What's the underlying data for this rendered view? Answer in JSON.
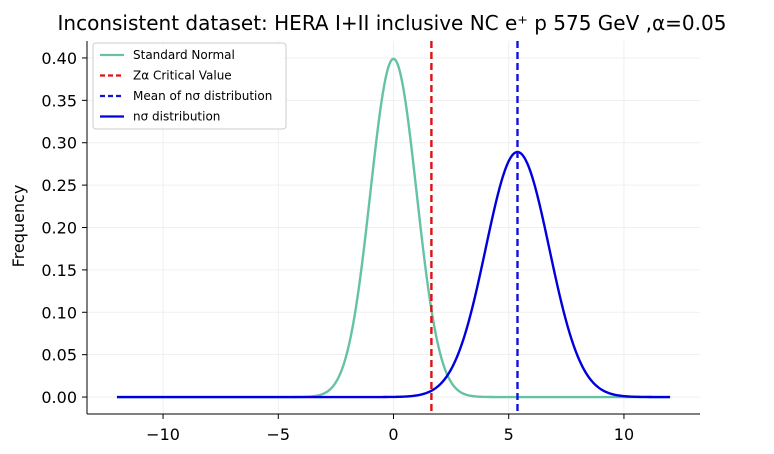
{
  "chart_data": {
    "type": "line",
    "title": "Inconsistent dataset: HERA I+II inclusive NC e⁺ p 575 GeV ,α=0.05",
    "xlabel": "",
    "ylabel": "Frequency",
    "xlim": [
      -13.3,
      13.3
    ],
    "ylim": [
      -0.02,
      0.42
    ],
    "xticks": [
      -10,
      -5,
      0,
      5,
      10
    ],
    "xtick_labels": [
      "−10",
      "−5",
      "0",
      "5",
      "10"
    ],
    "yticks": [
      0.0,
      0.05,
      0.1,
      0.15,
      0.2,
      0.25,
      0.3,
      0.35,
      0.4
    ],
    "ytick_labels": [
      "0.00",
      "0.05",
      "0.10",
      "0.15",
      "0.20",
      "0.25",
      "0.30",
      "0.35",
      "0.40"
    ],
    "grid": true,
    "legend_position": "top-left",
    "series": [
      {
        "name": "Standard Normal",
        "kind": "gaussian",
        "mean": 0.0,
        "sd": 1.0,
        "x_range": [
          -12,
          12
        ],
        "color": "#66c2a5",
        "style": "solid"
      },
      {
        "name": "nσ distribution",
        "kind": "gaussian",
        "mean": 5.38,
        "sd": 1.38,
        "x_range": [
          -12,
          12
        ],
        "color": "#0000dd",
        "style": "solid"
      }
    ],
    "vlines": [
      {
        "name": "Zα Critical Value",
        "x": 1.645,
        "color": "#dd1111",
        "style": "dashed"
      },
      {
        "name": "Mean of nσ distribution",
        "x": 5.38,
        "color": "#1111dd",
        "style": "dashed"
      }
    ],
    "legend": [
      {
        "label": "Standard Normal",
        "color": "#66c2a5",
        "style": "solid"
      },
      {
        "label": "Zα Critical Value",
        "color": "#dd1111",
        "style": "dashed"
      },
      {
        "label": "Mean of nσ distribution",
        "color": "#1111dd",
        "style": "dashed"
      },
      {
        "label": "nσ distribution",
        "color": "#0000dd",
        "style": "solid"
      }
    ]
  }
}
